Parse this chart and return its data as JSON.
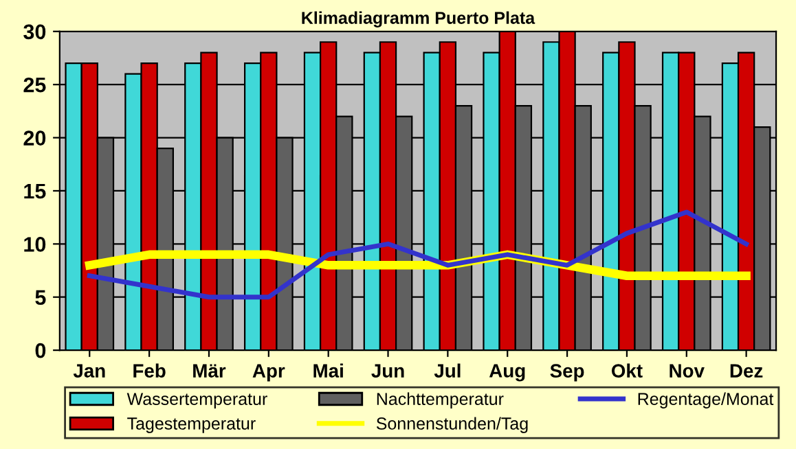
{
  "chart_data": {
    "type": "bar",
    "title": "Klimadiagramm Puerto Plata",
    "categories": [
      "Jan",
      "Feb",
      "Mär",
      "Apr",
      "Mai",
      "Jun",
      "Jul",
      "Aug",
      "Sep",
      "Okt",
      "Nov",
      "Dez"
    ],
    "series": [
      {
        "name": "Wassertemperatur",
        "color": "#40d8d8",
        "values": [
          27,
          26,
          27,
          27,
          28,
          28,
          28,
          28,
          29,
          28,
          28,
          27
        ]
      },
      {
        "name": "Tagestemperatur",
        "color": "#d00000",
        "values": [
          27,
          27,
          28,
          28,
          29,
          29,
          29,
          30,
          30,
          29,
          28,
          28
        ]
      },
      {
        "name": "Nachttemperatur",
        "color": "#606060",
        "values": [
          20,
          19,
          20,
          20,
          22,
          22,
          23,
          23,
          23,
          23,
          22,
          21
        ]
      },
      {
        "name": "Sonnenstunden/Tag",
        "type": "line",
        "color": "#ffff00",
        "values": [
          8,
          9,
          9,
          9,
          8,
          8,
          8,
          9,
          8,
          7,
          7,
          7
        ]
      },
      {
        "name": "Regentage/Monat",
        "type": "line",
        "color": "#3333cc",
        "values": [
          7,
          6,
          5,
          5,
          9,
          10,
          8,
          9,
          8,
          11,
          13,
          10
        ]
      }
    ],
    "ylim": [
      0,
      30
    ],
    "yticks": [
      0,
      5,
      10,
      15,
      20,
      25,
      30
    ],
    "grid": "y",
    "legend": "bottom",
    "marker": "none",
    "line_style": "solid"
  }
}
